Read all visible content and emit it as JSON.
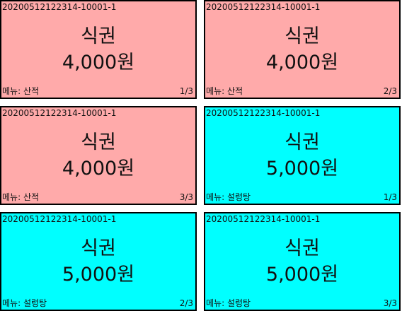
{
  "colors": {
    "sanjeok_background": "#ffaaaa",
    "seolleongtang_background": "#00ffff",
    "border": "#000000"
  },
  "tickets": [
    {
      "code": "20200512122314-10001-1",
      "title": "식권",
      "price": "4,000원",
      "menu_label": "메뉴:",
      "menu_value": "산적",
      "sequence": "1/3",
      "bg": "#ffaaaa"
    },
    {
      "code": "20200512122314-10001-1",
      "title": "식권",
      "price": "4,000원",
      "menu_label": "메뉴:",
      "menu_value": "산적",
      "sequence": "2/3",
      "bg": "#ffaaaa"
    },
    {
      "code": "20200512122314-10001-1",
      "title": "식권",
      "price": "4,000원",
      "menu_label": "메뉴:",
      "menu_value": "산적",
      "sequence": "3/3",
      "bg": "#ffaaaa"
    },
    {
      "code": "20200512122314-10001-1",
      "title": "식권",
      "price": "5,000원",
      "menu_label": "메뉴:",
      "menu_value": "설렁탕",
      "sequence": "1/3",
      "bg": "#00ffff"
    },
    {
      "code": "20200512122314-10001-1",
      "title": "식권",
      "price": "5,000원",
      "menu_label": "메뉴:",
      "menu_value": "설렁탕",
      "sequence": "2/3",
      "bg": "#00ffff"
    },
    {
      "code": "20200512122314-10001-1",
      "title": "식권",
      "price": "5,000원",
      "menu_label": "메뉴:",
      "menu_value": "설렁탕",
      "sequence": "3/3",
      "bg": "#00ffff"
    }
  ]
}
